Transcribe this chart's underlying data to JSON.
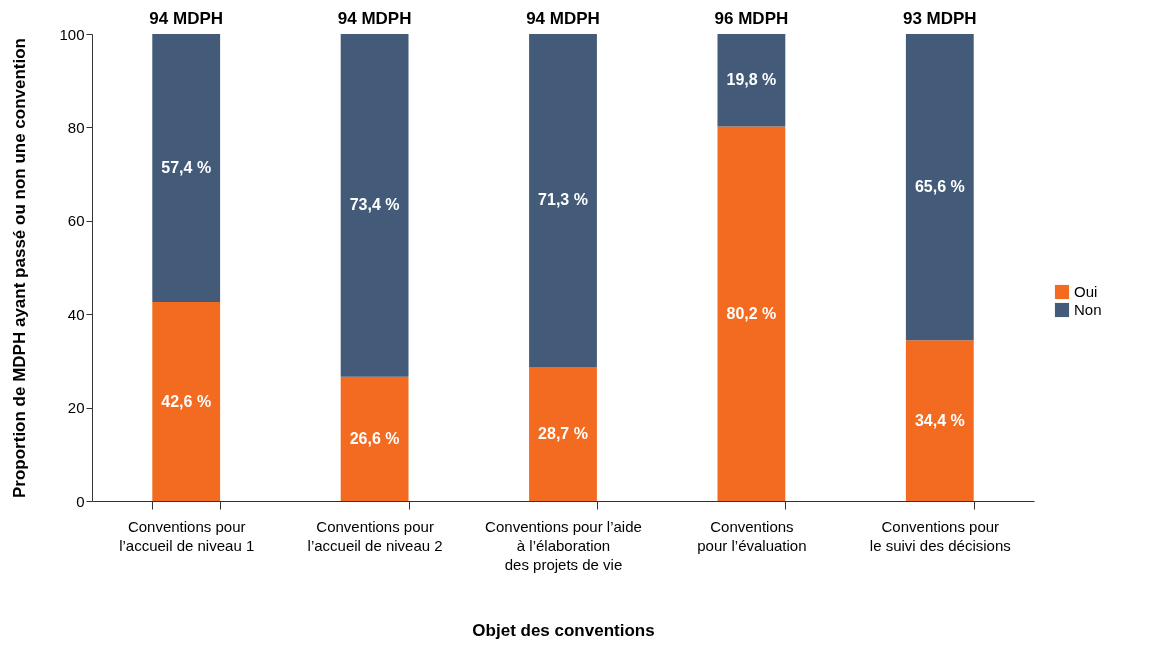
{
  "chart_data": {
    "type": "bar",
    "stacked": true,
    "xlabel": "Objet des conventions",
    "ylabel": "Proportion de MDPH ayant passé ou non une convention",
    "categories": [
      "Conventions pour\nl’accueil de niveau 1",
      "Conventions pour\nl’accueil de niveau 2",
      "Conventions pour l’aide\nà l’élaboration\ndes projets de vie",
      "Conventions\npour l’évaluation",
      "Conventions pour\nle suivi des décisions"
    ],
    "series": [
      {
        "name": "Oui",
        "color": "#f26b21",
        "values": [
          42.6,
          26.6,
          28.7,
          80.2,
          34.4
        ],
        "value_labels": [
          "42,6 %",
          "26,6 %",
          "28,7 %",
          "80,2 %",
          "34,4 %"
        ]
      },
      {
        "name": "Non",
        "color": "#435b78",
        "values": [
          57.4,
          73.4,
          71.3,
          19.8,
          65.6
        ],
        "value_labels": [
          "57,4 %",
          "73,4 %",
          "71,3 %",
          "19,8 %",
          "65,6 %"
        ]
      }
    ],
    "annotations": [
      {
        "text": "94 MDPH",
        "x": "Conventions pour\nl’accueil de niveau 1",
        "y": 100
      },
      {
        "text": "94 MDPH",
        "x": "Conventions pour\nl’accueil de niveau 2",
        "y": 100
      },
      {
        "text": "94 MDPH",
        "x": "Conventions pour l’aide\nà l’élaboration\ndes projets de vie",
        "y": 100
      },
      {
        "text": "96 MDPH",
        "x": "Conventions\npour l’évaluation",
        "y": 100
      },
      {
        "text": "93 MDPH",
        "x": "Conventions pour\nle suivi des décisions",
        "y": 100
      }
    ],
    "ylim": [
      0,
      100
    ],
    "yticks": [
      0,
      20,
      40,
      60,
      80,
      100
    ],
    "grid": false,
    "legend": "right"
  }
}
